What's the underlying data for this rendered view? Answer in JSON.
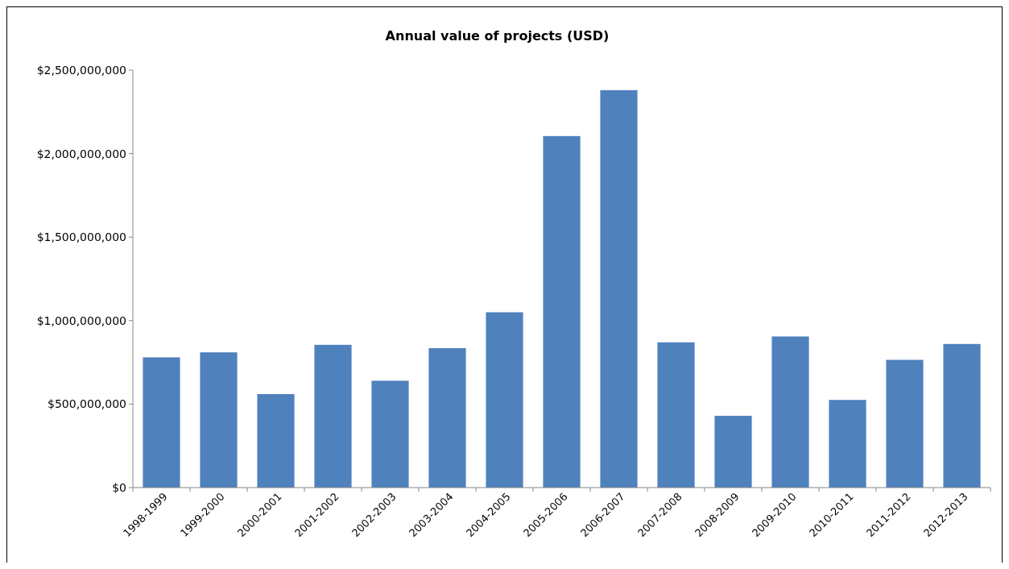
{
  "chart_data": {
    "type": "bar",
    "title": "Annual value of projects (USD)",
    "categories": [
      "1998-1999",
      "1999-2000",
      "2000-2001",
      "2001-2002",
      "2002-2003",
      "2003-2004",
      "2004-2005",
      "2005-2006",
      "2006-2007",
      "2007-2008",
      "2008-2009",
      "2009-2010",
      "2010-2011",
      "2011-2012",
      "2012-2013"
    ],
    "values": [
      780000000,
      810000000,
      560000000,
      855000000,
      640000000,
      835000000,
      1050000000,
      2105000000,
      2380000000,
      870000000,
      430000000,
      905000000,
      525000000,
      765000000,
      860000000
    ],
    "color": "#4f81bd",
    "ylim": [
      0,
      2500000000
    ],
    "yticks": [
      {
        "value": 0,
        "label": "$0"
      },
      {
        "value": 500000000,
        "label": "$500,000,000"
      },
      {
        "value": 1000000000,
        "label": "$1,000,000,000"
      },
      {
        "value": 1500000000,
        "label": "$1,500,000,000"
      },
      {
        "value": 2000000000,
        "label": "$2,000,000,000"
      },
      {
        "value": 2500000000,
        "label": "$2,500,000,000"
      }
    ],
    "grid": false
  }
}
